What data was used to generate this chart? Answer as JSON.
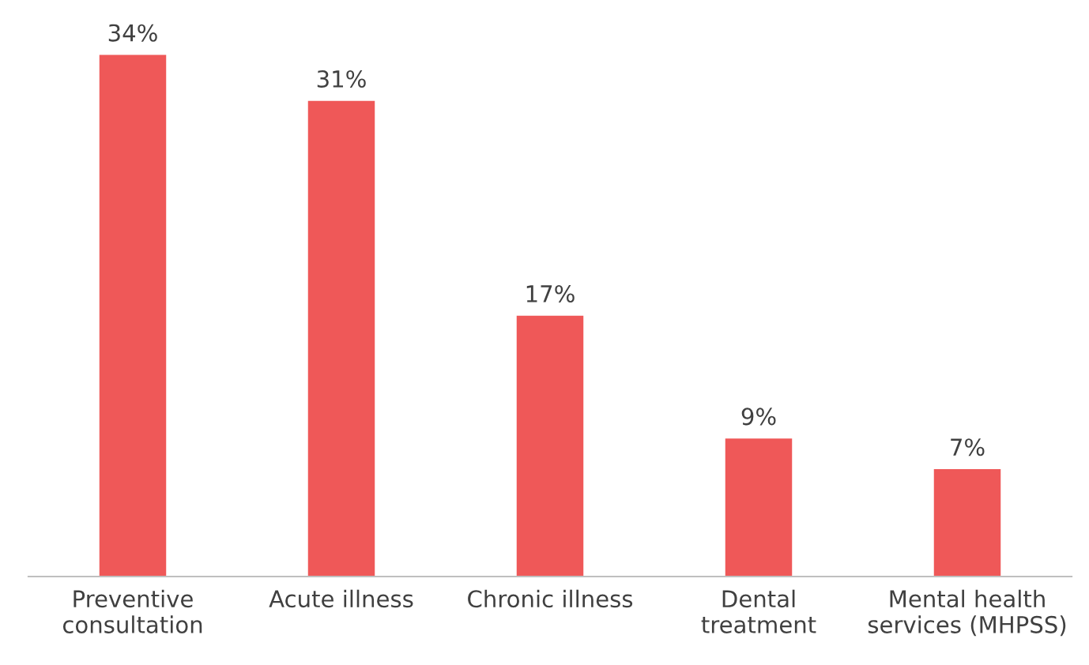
{
  "chart_data": {
    "type": "bar",
    "categories": [
      "Preventive\nconsultation",
      "Acute illness",
      "Chronic illness",
      "Dental\ntreatment",
      "Mental health\nservices (MHPSS)"
    ],
    "values": [
      34,
      31,
      17,
      9,
      7
    ],
    "value_labels": [
      "34%",
      "31%",
      "17%",
      "9%",
      "7%"
    ],
    "color": "#ef5858",
    "grid": false,
    "legend": false
  }
}
